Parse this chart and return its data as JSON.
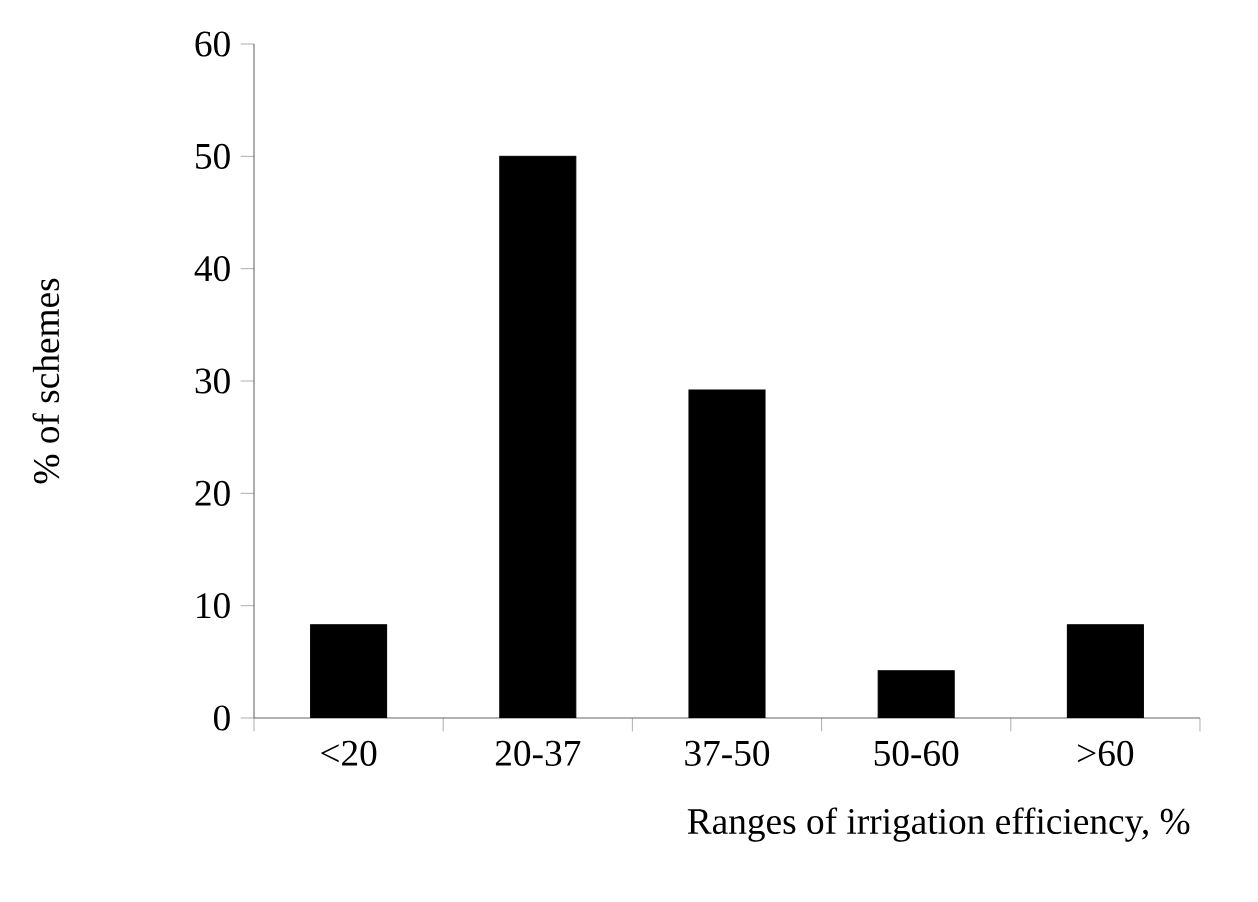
{
  "chart_data": {
    "type": "bar",
    "xlabel": "Ranges of irrigation efficiency, %",
    "ylabel": "% of schemes",
    "categories": [
      "<20",
      "20-37",
      "37-50",
      "50-60",
      ">60"
    ],
    "values": [
      8.3,
      50,
      29.2,
      4.2,
      8.3
    ],
    "color": "#000000",
    "ylim": [
      0,
      60
    ],
    "yticks": [
      0,
      10,
      20,
      30,
      40,
      50,
      60
    ]
  }
}
